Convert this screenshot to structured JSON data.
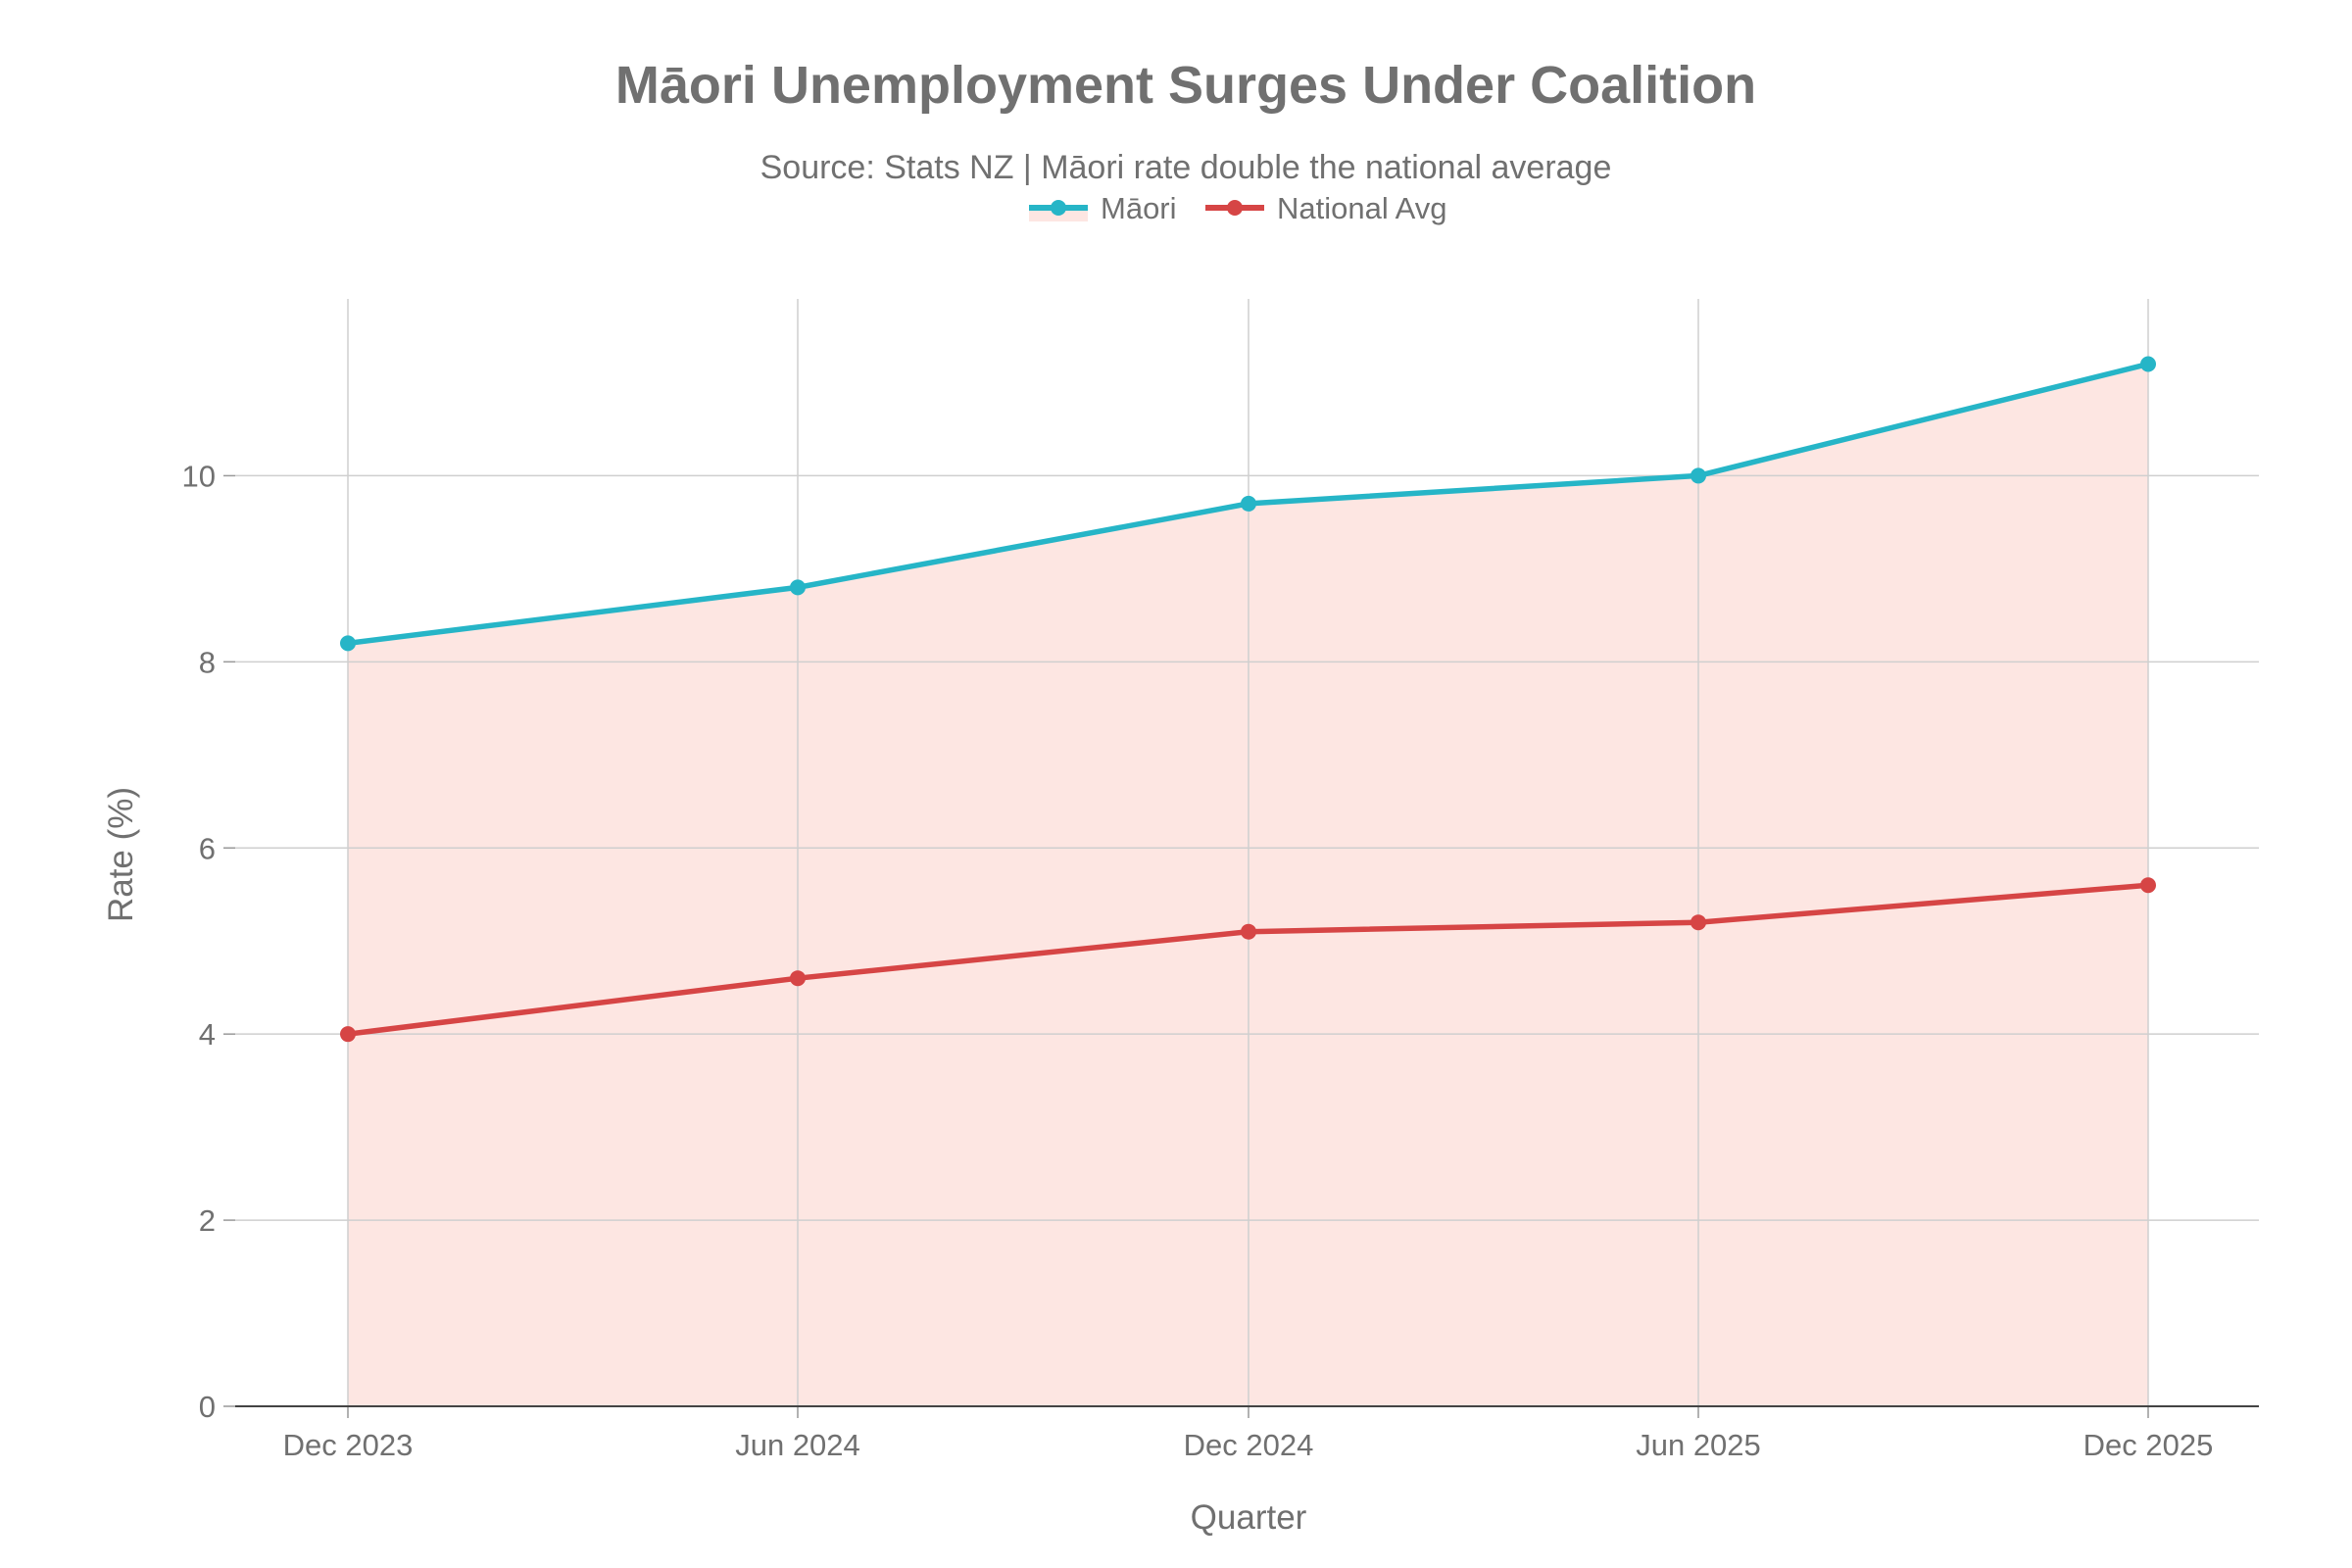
{
  "chart_data": {
    "type": "line",
    "title": "Māori Unemployment Surges Under Coalition",
    "subtitle": "Source: Stats NZ | Māori rate double the national average",
    "xlabel": "Quarter",
    "ylabel": "Rate (%)",
    "categories": [
      "Dec 2023",
      "Jun 2024",
      "Dec 2024",
      "Jun 2025",
      "Dec 2025"
    ],
    "ylim": [
      0,
      11.9
    ],
    "yticks": [
      0,
      2,
      4,
      6,
      8,
      10
    ],
    "grid": true,
    "legend_position": "top-center",
    "series": [
      {
        "name": "Māori",
        "values": [
          8.2,
          8.8,
          9.7,
          10.0,
          11.2
        ],
        "color": "#26b5c7",
        "fill": "#fde6e2"
      },
      {
        "name": "National Avg",
        "values": [
          4.0,
          4.6,
          5.1,
          5.2,
          5.6
        ],
        "color": "#d64545"
      }
    ]
  }
}
